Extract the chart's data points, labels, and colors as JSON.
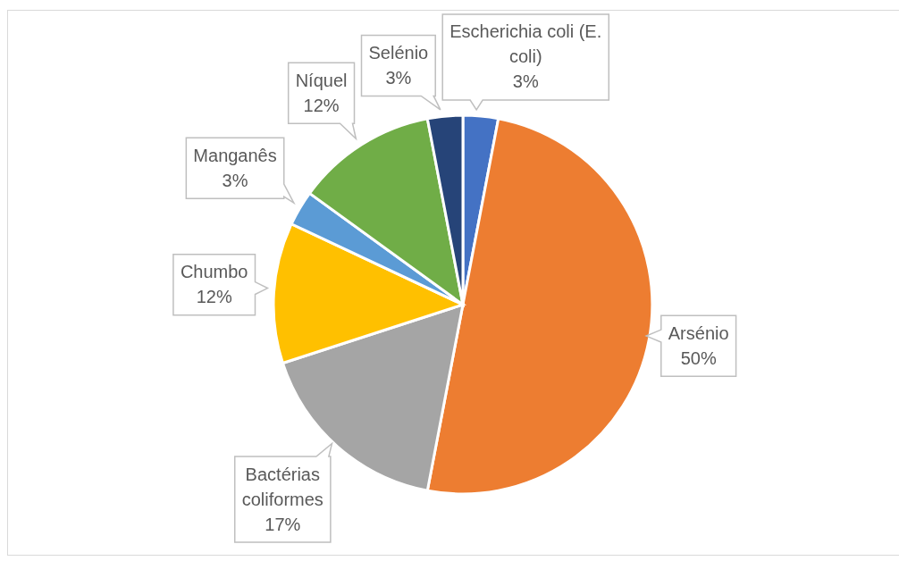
{
  "chart_data": {
    "type": "pie",
    "categories": [
      "Escherichia coli (E. coli)",
      "Arsénio",
      "Bactérias coliformes",
      "Chumbo",
      "Manganês",
      "Níquel",
      "Selénio"
    ],
    "values": [
      3,
      50,
      17,
      12,
      3,
      12,
      3
    ],
    "value_labels": [
      "3%",
      "50%",
      "17%",
      "12%",
      "3%",
      "12%",
      "3%"
    ],
    "colors": [
      "#4472c4",
      "#ed7d31",
      "#a5a5a5",
      "#ffc000",
      "#5b9bd5",
      "#70ad47",
      "#264478"
    ]
  }
}
